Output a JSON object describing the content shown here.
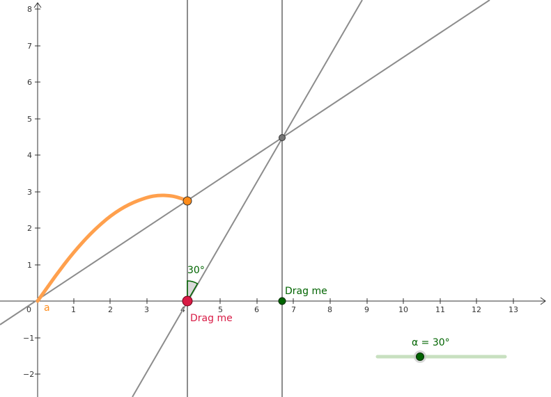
{
  "app": {
    "type": "geometry-graphing-view"
  },
  "axes": {
    "x_ticks": [
      "0",
      "1",
      "2",
      "3",
      "4",
      "5",
      "6",
      "7",
      "8",
      "9",
      "10",
      "11",
      "12",
      "13"
    ],
    "y_ticks_pos": [
      "1",
      "2",
      "3",
      "4",
      "5",
      "6",
      "7",
      "8"
    ],
    "y_ticks_neg": [
      "−1",
      "−2"
    ],
    "xlim": [
      -1.0,
      14.1
    ],
    "ylim": [
      -2.6,
      8.25
    ]
  },
  "curve": {
    "label": "a",
    "color": "#ffa04d",
    "points": [
      [
        0,
        0
      ],
      [
        0.5,
        0.71
      ],
      [
        1,
        1.36
      ],
      [
        1.5,
        1.91
      ],
      [
        2,
        2.35
      ],
      [
        2.5,
        2.66
      ],
      [
        3,
        2.85
      ],
      [
        3.3,
        2.9
      ],
      [
        3.6,
        2.89
      ],
      [
        3.8,
        2.85
      ],
      [
        4.1,
        2.75
      ]
    ]
  },
  "points": {
    "end_point": {
      "x": 4.1,
      "y": 2.75,
      "color": "#ff8c1a"
    },
    "drag_red": {
      "x": 4.1,
      "y": 0,
      "label": "Drag me",
      "color": "#d81b45"
    },
    "drag_green": {
      "x": 6.7,
      "y": 0,
      "label": "Drag me",
      "color": "#006400"
    },
    "intersection": {
      "x": 6.7,
      "y": 4.48,
      "color": "#777777"
    }
  },
  "lines": {
    "vertical_1_x": 4.1,
    "vertical_2_x": 6.7,
    "color": "#888888"
  },
  "angle": {
    "label": "30°",
    "degrees": 30,
    "color": "#006400"
  },
  "slider": {
    "label": "α = 30°",
    "value": 30,
    "min": 0,
    "max": 90,
    "value_fraction": 0.33,
    "color": "#006400",
    "track_color": "#c8e0c0"
  }
}
